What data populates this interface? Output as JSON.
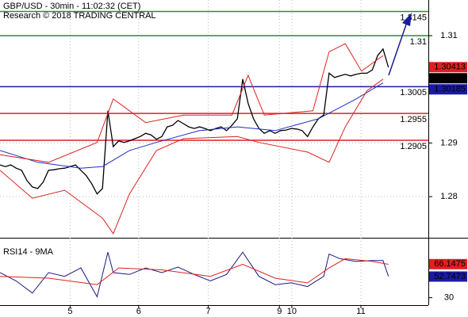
{
  "chart_data": [
    {
      "type": "line",
      "title": "GBP/USD - 30min - 11:02:32 (CET)",
      "subtitle": "Research © 2018 TRADING CENTRAL",
      "xlim": [
        0,
        79.4
      ],
      "xticks": [
        {
          "value": 13,
          "label": "5"
        },
        {
          "value": 25.7,
          "label": "6"
        },
        {
          "value": 38.6,
          "label": "7"
        },
        {
          "value": 51.8,
          "label": "9"
        },
        {
          "value": 54.1,
          "label": "10"
        },
        {
          "value": 66.9,
          "label": "11"
        }
      ],
      "ylim": [
        1.27233,
        1.31665
      ],
      "yticks": [
        1.31,
        1.29,
        1.28
      ],
      "grid": true,
      "series": [
        {
          "color": "#000000",
          "x": [
            0,
            1,
            2,
            3,
            4,
            5,
            6,
            7,
            8,
            9,
            10,
            11,
            12,
            13,
            14,
            15,
            16,
            17,
            18,
            19,
            20,
            21,
            22,
            23,
            24,
            25,
            26,
            27,
            28,
            29,
            30,
            31,
            32,
            33,
            34,
            35,
            36,
            37,
            38,
            39,
            40,
            41,
            42,
            43,
            44,
            45,
            46,
            47,
            48,
            49,
            50,
            51,
            52,
            53,
            54,
            55,
            56,
            57,
            58,
            59,
            60,
            61,
            62,
            63,
            64,
            65,
            66,
            67,
            68,
            69,
            70,
            71,
            72
          ],
          "values": [
            1.2859,
            1.2856,
            1.2859,
            1.2853,
            1.2849,
            1.283,
            1.2818,
            1.2815,
            1.2827,
            1.2849,
            1.285,
            1.2852,
            1.2853,
            1.2856,
            1.2859,
            1.2849,
            1.2839,
            1.2824,
            1.2805,
            1.2815,
            1.296,
            1.2893,
            1.2904,
            1.2901,
            1.2904,
            1.2908,
            1.2912,
            1.2918,
            1.2915,
            1.2907,
            1.2912,
            1.293,
            1.2933,
            1.2942,
            1.2936,
            1.293,
            1.2927,
            1.293,
            1.2927,
            1.2923,
            1.2927,
            1.293,
            1.2923,
            1.2933,
            1.2945,
            1.3019,
            1.2974,
            1.2945,
            1.2927,
            1.2918,
            1.2923,
            1.2918,
            1.2923,
            1.2924,
            1.2927,
            1.2926,
            1.2923,
            1.2912,
            1.293,
            1.2945,
            1.2952,
            1.303,
            1.3022,
            1.3025,
            1.3028,
            1.3025,
            1.3028,
            1.303,
            1.303,
            1.3036,
            1.3063,
            1.3075,
            1.3041
          ]
        },
        {
          "color": "#2030c0",
          "x": [
            0,
            7,
            15,
            19,
            24,
            29,
            37,
            44,
            51,
            59,
            66,
            71
          ],
          "values": [
            1.2886,
            1.2864,
            1.2853,
            1.2856,
            1.2886,
            1.2901,
            1.2923,
            1.293,
            1.2923,
            1.2945,
            1.2982,
            1.3012
          ]
        },
        {
          "color": "#e02020",
          "x": [
            0,
            9,
            18,
            21,
            27,
            34,
            43,
            46,
            49,
            58,
            61,
            64,
            67,
            71
          ],
          "values": [
            1.2878,
            1.2864,
            1.2901,
            1.2982,
            1.2938,
            1.2952,
            1.2952,
            1.3026,
            1.2952,
            1.296,
            1.307,
            1.3085,
            1.3034,
            1.3063
          ]
        },
        {
          "color": "#e02020",
          "x": [
            0,
            6,
            12,
            19,
            21,
            24,
            29,
            34,
            44,
            48,
            57,
            61,
            64,
            68,
            71
          ],
          "values": [
            1.2849,
            1.2797,
            1.2812,
            1.276,
            1.2731,
            1.2805,
            1.2886,
            1.2908,
            1.2912,
            1.2901,
            1.2883,
            1.2864,
            1.293,
            1.2997,
            1.3019
          ]
        }
      ],
      "levels": [
        {
          "value": 1.3145,
          "color": "#1a9a1a"
        },
        {
          "value": 1.31,
          "color": "#1a9a1a"
        },
        {
          "value": 1.3005,
          "color": "#1a1aa0"
        },
        {
          "value": 1.2955,
          "color": "#e02020"
        },
        {
          "value": 1.2905,
          "color": "#e02020"
        }
      ],
      "price_tags": [
        {
          "value": 1.30413,
          "color": "#e02020"
        },
        {
          "value": 1.3041,
          "color": "#000000"
        },
        {
          "value": 1.30185,
          "color": "#1a1aa0"
        }
      ]
    },
    {
      "type": "line",
      "title": "RSI14 - 9MA",
      "ylim": [
        22,
        92
      ],
      "yticks": [
        30
      ],
      "series": [
        {
          "color": "#1a1a80",
          "x": [
            0,
            3,
            6,
            9,
            12,
            15,
            18,
            20,
            21,
            24,
            27,
            30,
            33,
            36,
            39,
            42,
            45,
            48,
            51,
            54,
            57,
            60,
            61,
            63,
            66,
            69,
            71,
            72
          ],
          "values": [
            57,
            48,
            35,
            57,
            53,
            62,
            31,
            79,
            57,
            55,
            62,
            57,
            63,
            55,
            48,
            55,
            79,
            53,
            44,
            46,
            42,
            53,
            77,
            72,
            69,
            70,
            70,
            53
          ]
        },
        {
          "color": "#e02020",
          "x": [
            0,
            9,
            18,
            22,
            30,
            39,
            45,
            51,
            57,
            61,
            64,
            69,
            72
          ],
          "values": [
            53,
            51,
            44,
            62,
            60,
            53,
            66,
            51,
            46,
            62,
            72,
            69,
            66
          ]
        }
      ],
      "price_tags": [
        {
          "value": 66.1475,
          "color": "#e02020"
        },
        {
          "value": 52.7473,
          "color": "#1a1aa0"
        }
      ]
    }
  ]
}
